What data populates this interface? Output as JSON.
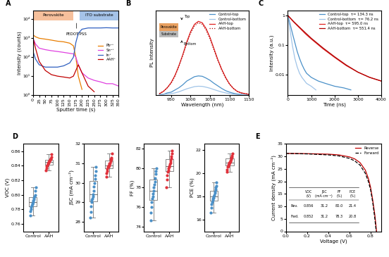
{
  "chart_data": [
    {
      "panel": "A",
      "type": "line",
      "log": "y",
      "xlabel": "Sputter time (s)",
      "ylabel": "Intensity (counts)",
      "xlim": [
        0,
        350
      ],
      "xticks": [
        0,
        25,
        50,
        75,
        100,
        125,
        150,
        175,
        200,
        225,
        250,
        275,
        300,
        325,
        350
      ],
      "ylim": [
        1,
        30000
      ],
      "yticks": [
        {
          "value": 1,
          "label": "10⁰"
        },
        {
          "value": 10,
          "label": "10¹"
        },
        {
          "value": 100,
          "label": "10²"
        },
        {
          "value": 1000,
          "label": "10³"
        },
        {
          "value": 10000,
          "label": "10⁴"
        }
      ],
      "legend": "center right",
      "regions": [
        {
          "label": "Perovskite",
          "start": 0,
          "end": 165,
          "color": "#f4b183"
        },
        {
          "label": "ITO substrate",
          "start": 190,
          "end": 350,
          "color": "#8fb4e3"
        }
      ],
      "annotation": {
        "text": "PEDOT:PSS",
        "x": 178
      },
      "x": [
        0,
        10,
        25,
        50,
        75,
        100,
        125,
        150,
        165,
        175,
        185,
        200,
        225,
        250,
        275,
        300,
        325,
        350
      ],
      "series": [
        {
          "name": "Pb²⁺",
          "color": "#e87d00",
          "line_style": "solid",
          "values": [
            1500,
            1200,
            1000,
            900,
            800,
            700,
            650,
            550,
            400,
            100,
            10,
            2,
            null,
            null,
            null,
            null,
            null,
            null
          ]
        },
        {
          "name": "Sn²⁺",
          "color": "#e040e0",
          "line_style": "solid",
          "values": [
            1000,
            500,
            300,
            250,
            220,
            200,
            180,
            160,
            150,
            100,
            40,
            15,
            8,
            6,
            5,
            4,
            4,
            3
          ]
        },
        {
          "name": "In⁺",
          "color": "#3060c0",
          "line_style": "solid",
          "values": [
            200,
            80,
            40,
            30,
            30,
            30,
            35,
            50,
            100,
            600,
            1800,
            3000,
            3500,
            3500,
            3500,
            3600,
            3500,
            3500
          ]
        },
        {
          "name": "AAH⁺",
          "color": "#c00000",
          "line_style": "solid",
          "values": [
            1000,
            300,
            60,
            20,
            12,
            10,
            9,
            8,
            10,
            20,
            40,
            15,
            3,
            1.5,
            null,
            null,
            null,
            null
          ]
        }
      ]
    },
    {
      "panel": "B",
      "type": "line",
      "xlabel": "Wavelength (nm)",
      "ylabel": "PL intensity",
      "tick_labels": "x",
      "xlim": [
        910,
        1150
      ],
      "xticks": [
        950,
        1000,
        1050,
        1100,
        1150
      ],
      "ylim": [
        0,
        1.15
      ],
      "legend": "upper right",
      "inset_labels": [
        "Top",
        "Perovskite",
        "Substrate",
        "Bottom"
      ],
      "x": [
        920,
        930,
        940,
        950,
        960,
        970,
        980,
        990,
        1000,
        1010,
        1020,
        1030,
        1040,
        1050,
        1060,
        1070,
        1080,
        1090,
        1100,
        1110,
        1120,
        1130,
        1140,
        1150
      ],
      "series": [
        {
          "name": "Control-top",
          "color": "#4a90c8",
          "line_style": "solid",
          "values": [
            0.01,
            0.01,
            0.03,
            0.04,
            0.07,
            0.1,
            0.14,
            0.19,
            0.22,
            0.25,
            0.26,
            0.255,
            0.23,
            0.2,
            0.16,
            0.125,
            0.09,
            0.06,
            0.04,
            0.025,
            0.015,
            0.01,
            0.005,
            0.003
          ]
        },
        {
          "name": "Control-bottom",
          "color": "#a0c4e8",
          "line_style": "solid",
          "values": [
            0.005,
            0.01,
            0.015,
            0.02,
            0.03,
            0.045,
            0.065,
            0.085,
            0.1,
            0.115,
            0.12,
            0.118,
            0.107,
            0.093,
            0.075,
            0.058,
            0.042,
            0.03,
            0.02,
            0.013,
            0.008,
            0.005,
            0.003,
            0.002
          ]
        },
        {
          "name": "AAH-top",
          "color": "#e02020",
          "line_style": "solid",
          "values": [
            0.02,
            0.05,
            0.1,
            0.17,
            0.27,
            0.4,
            0.55,
            0.72,
            0.86,
            0.96,
            1.0,
            0.98,
            0.9,
            0.78,
            0.63,
            0.48,
            0.35,
            0.24,
            0.15,
            0.09,
            0.05,
            0.03,
            0.02,
            0.01
          ]
        },
        {
          "name": "AAH-bottom",
          "color": "#b00000",
          "line_style": "dotted",
          "values": [
            0.02,
            0.05,
            0.1,
            0.16,
            0.26,
            0.39,
            0.54,
            0.7,
            0.84,
            0.94,
            0.98,
            0.96,
            0.88,
            0.76,
            0.61,
            0.47,
            0.34,
            0.23,
            0.15,
            0.09,
            0.05,
            0.03,
            0.02,
            0.01
          ]
        }
      ]
    },
    {
      "panel": "C",
      "type": "line",
      "log": "y",
      "xlabel": "Time (ns)",
      "ylabel": "Intensity (a.u.)",
      "xlim": [
        0,
        4000
      ],
      "xticks": [
        0,
        1000,
        2000,
        3000,
        4000
      ],
      "ylim": [
        0.002,
        1.5
      ],
      "yticks": [
        0.01,
        0.1,
        1
      ],
      "legend": "upper right",
      "series": [
        {
          "name": "Control-top  τ= 134.3 ns",
          "color": "#4a90c8",
          "line_style": "solid",
          "x": [
            0,
            100,
            200,
            300,
            400,
            500,
            600,
            700,
            800,
            1000,
            1300,
            1600,
            2000,
            2400,
            2700
          ],
          "values": [
            1,
            0.5,
            0.24,
            0.12,
            0.06,
            0.035,
            0.022,
            0.015,
            0.011,
            0.008,
            0.006,
            0.005,
            0.004,
            0.0035,
            0.003
          ]
        },
        {
          "name": "Control-bottom  τ= 76.2 ns",
          "color": "#a0c4e8",
          "line_style": "solid",
          "x": [
            0,
            100,
            200,
            300,
            400,
            500,
            600,
            800,
            1000,
            1200
          ],
          "values": [
            1,
            0.3,
            0.09,
            0.035,
            0.018,
            0.011,
            0.008,
            0.005,
            0.004,
            0.003
          ]
        },
        {
          "name": "AAH-top  τ= 595.0 ns",
          "color": "#e02020",
          "line_style": "solid",
          "x": [
            0,
            250,
            500,
            750,
            1000,
            1500,
            2000,
            2500,
            3000,
            3500,
            4000
          ],
          "values": [
            1,
            0.6,
            0.38,
            0.24,
            0.16,
            0.075,
            0.038,
            0.02,
            0.012,
            0.008,
            0.006
          ]
        },
        {
          "name": "AAH-bottom  τ= 551.4 ns",
          "color": "#b00000",
          "line_style": "solid",
          "x": [
            0,
            250,
            500,
            750,
            1000,
            1500,
            2000,
            2500,
            3000,
            3500,
            4000
          ],
          "values": [
            1,
            0.62,
            0.4,
            0.26,
            0.17,
            0.08,
            0.04,
            0.021,
            0.012,
            0.008,
            0.006
          ]
        }
      ]
    },
    {
      "panel": "D",
      "type": "box",
      "ylabel": "VOC (V)",
      "categories": [
        "Control",
        "AAH"
      ],
      "colors": [
        "#4a90c8",
        "#e0303a"
      ],
      "ylim": [
        0.75,
        0.87
      ],
      "yticks": [
        0.76,
        0.78,
        {
          "value": 0.8,
          "label": "0.80"
        },
        0.82,
        0.84,
        0.86
      ],
      "values": [
        [
          0.772,
          0.778,
          0.78,
          0.783,
          0.785,
          0.787,
          0.788,
          0.79,
          0.792,
          0.794,
          0.796,
          0.798,
          0.8,
          0.806,
          0.81
        ],
        [
          0.834,
          0.837,
          0.839,
          0.84,
          0.842,
          0.843,
          0.844,
          0.845,
          0.846,
          0.847,
          0.848,
          0.849,
          0.85,
          0.852,
          0.856
        ]
      ]
    },
    {
      "type": "box",
      "ylabel": "JSC (mA cm⁻²)",
      "categories": [
        "Control",
        "AAH"
      ],
      "colors": [
        "#4a90c8",
        "#e0303a"
      ],
      "ylim": [
        27.5,
        32
      ],
      "yticks": [
        28,
        29,
        30,
        31,
        32
      ],
      "values": [
        [
          28.2,
          28.5,
          28.8,
          29.0,
          29.1,
          29.2,
          29.3,
          29.4,
          29.6,
          29.8,
          30.0,
          30.2,
          30.4,
          30.6,
          30.8
        ],
        [
          30.3,
          30.5,
          30.6,
          30.7,
          30.8,
          30.8,
          30.9,
          30.9,
          31.0,
          31.0,
          31.1,
          31.2,
          31.2,
          31.3,
          31.5
        ]
      ]
    },
    {
      "type": "box",
      "ylabel": "FF (%)",
      "categories": [
        "Control",
        "AAH"
      ],
      "colors": [
        "#4a90c8",
        "#e0303a"
      ],
      "ylim": [
        73.5,
        82.5
      ],
      "yticks": [
        74,
        76,
        78,
        80,
        82
      ],
      "values": [
        [
          74.6,
          75.4,
          76.0,
          76.5,
          76.9,
          77.1,
          77.4,
          77.7,
          78.0,
          78.3,
          78.6,
          79.0,
          79.4,
          79.7,
          80.0
        ],
        [
          78.0,
          78.8,
          79.3,
          79.6,
          79.8,
          80.0,
          80.1,
          80.2,
          80.4,
          80.6,
          80.8,
          81.0,
          81.2,
          81.5,
          81.8
        ]
      ]
    },
    {
      "type": "box",
      "ylabel": "PCE (%)",
      "categories": [
        "Control",
        "AAH"
      ],
      "colors": [
        "#4a90c8",
        "#e0303a"
      ],
      "ylim": [
        15,
        22.5
      ],
      "yticks": [
        16,
        18,
        20,
        22
      ],
      "values": [
        [
          16.6,
          17.0,
          17.3,
          17.5,
          17.7,
          17.8,
          17.9,
          18.0,
          18.1,
          18.3,
          18.4,
          18.6,
          18.8,
          18.9,
          19.2
        ],
        [
          20.1,
          20.3,
          20.5,
          20.6,
          20.7,
          20.8,
          20.9,
          20.9,
          21.0,
          21.1,
          21.2,
          21.3,
          21.4,
          21.5,
          21.7
        ]
      ]
    },
    {
      "panel": "E",
      "type": "line",
      "xlabel": "Voltage (V)",
      "ylabel": "Current density (mA cm⁻²)",
      "xlim": [
        0,
        0.9
      ],
      "xticks": [
        0.0,
        0.2,
        0.4,
        0.6,
        0.8
      ],
      "ylim": [
        0,
        35
      ],
      "yticks": [
        0,
        5,
        10,
        15,
        20,
        25,
        30,
        35
      ],
      "legend": "upper right",
      "table": {
        "columns": [
          "VOC\n(V)",
          "JSC\n(mA cm⁻²)",
          "FF\n(%)",
          "PCE\n(%)"
        ],
        "rows": [
          {
            "label": "Rev.",
            "cells": [
              "0.856",
              "31.2",
              "80.0",
              "21.4"
            ]
          },
          {
            "label": "Fwd.",
            "cells": [
              "0.852",
              "31.2",
              "78.3",
              "20.8"
            ]
          }
        ]
      },
      "series": [
        {
          "name": "Reverse",
          "color": "#c00000",
          "line_style": "solid",
          "x": [
            0,
            0.1,
            0.2,
            0.3,
            0.4,
            0.5,
            0.6,
            0.65,
            0.7,
            0.75,
            0.78,
            0.8,
            0.82,
            0.84,
            0.856
          ],
          "values": [
            31.2,
            31.15,
            31.1,
            31.0,
            30.9,
            30.6,
            29.8,
            29.0,
            27.5,
            24.5,
            21.0,
            17.5,
            12.5,
            6.5,
            0
          ]
        },
        {
          "name": "Forward",
          "color": "#000000",
          "line_style": "dashed",
          "x": [
            0,
            0.1,
            0.2,
            0.3,
            0.4,
            0.5,
            0.6,
            0.65,
            0.7,
            0.75,
            0.78,
            0.8,
            0.82,
            0.84,
            0.852
          ],
          "values": [
            31.2,
            31.1,
            31.0,
            30.8,
            30.6,
            30.2,
            29.2,
            28.2,
            26.5,
            23.2,
            19.8,
            16.5,
            11.5,
            5.0,
            0
          ]
        }
      ]
    }
  ]
}
